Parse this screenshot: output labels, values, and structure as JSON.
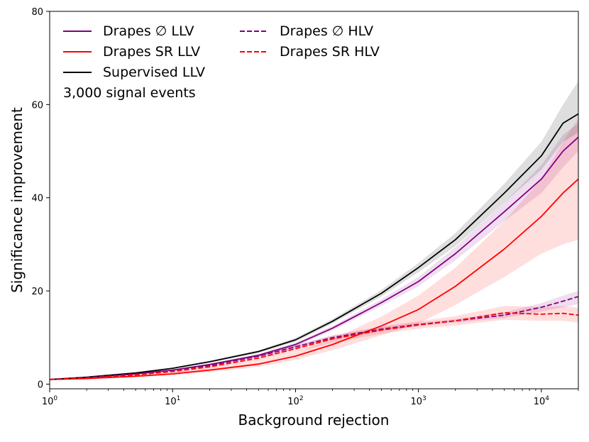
{
  "chart_data": {
    "type": "line",
    "xlabel": "Background rejection",
    "ylabel": "Significance improvement",
    "xscale": "log",
    "xlim": [
      1,
      20000
    ],
    "ylim": [
      -1,
      80
    ],
    "annotation": "3,000 signal events",
    "legend_position": "top-left",
    "x_ticks": [
      {
        "value": 1,
        "base": "10",
        "exp": "0"
      },
      {
        "value": 10,
        "base": "10",
        "exp": "1"
      },
      {
        "value": 100,
        "base": "10",
        "exp": "2"
      },
      {
        "value": 1000,
        "base": "10",
        "exp": "3"
      },
      {
        "value": 10000,
        "base": "10",
        "exp": "4"
      }
    ],
    "y_ticks": [
      {
        "value": 0,
        "label": "0"
      },
      {
        "value": 20,
        "label": "20"
      },
      {
        "value": 40,
        "label": "40"
      },
      {
        "value": 60,
        "label": "60"
      },
      {
        "value": 80,
        "label": "80"
      }
    ],
    "series": [
      {
        "name": "Drapes ∅ LLV",
        "color": "#800080",
        "dash": "solid",
        "x": [
          1,
          2,
          5,
          10,
          20,
          50,
          100,
          200,
          500,
          1000,
          2000,
          5000,
          10000,
          15000,
          20000
        ],
        "y": [
          1.0,
          1.4,
          2.2,
          3.0,
          4.2,
          6.2,
          8.5,
          12.0,
          17.5,
          22.0,
          28.0,
          37.0,
          44.0,
          50.0,
          53.0
        ],
        "band_lo": [
          1.0,
          1.3,
          2.1,
          2.9,
          4.0,
          5.9,
          8.1,
          11.5,
          16.8,
          21.0,
          26.6,
          35.0,
          41.0,
          46.5,
          50.0
        ],
        "band_hi": [
          1.0,
          1.5,
          2.3,
          3.1,
          4.4,
          6.5,
          8.9,
          12.5,
          18.2,
          23.0,
          29.4,
          39.0,
          47.0,
          53.5,
          56.0
        ]
      },
      {
        "name": "Drapes SR LLV",
        "color": "#ff0000",
        "dash": "solid",
        "x": [
          1,
          2,
          5,
          10,
          20,
          50,
          100,
          200,
          500,
          1000,
          2000,
          5000,
          10000,
          15000,
          20000
        ],
        "y": [
          1.0,
          1.2,
          1.7,
          2.2,
          3.0,
          4.3,
          6.0,
          8.5,
          12.5,
          16.0,
          21.0,
          29.0,
          36.0,
          41.0,
          44.0
        ],
        "band_lo": [
          0.9,
          1.1,
          1.5,
          1.9,
          2.6,
          3.7,
          5.2,
          7.3,
          10.5,
          13.0,
          17.0,
          23.0,
          28.0,
          30.0,
          31.0
        ],
        "band_hi": [
          1.1,
          1.3,
          1.9,
          2.5,
          3.4,
          4.9,
          6.8,
          9.7,
          14.5,
          19.0,
          25.0,
          35.0,
          44.0,
          52.0,
          57.0
        ]
      },
      {
        "name": "Supervised LLV",
        "color": "#000000",
        "dash": "solid",
        "x": [
          1,
          2,
          5,
          10,
          20,
          50,
          100,
          200,
          500,
          1000,
          2000,
          5000,
          10000,
          15000,
          20000
        ],
        "y": [
          1.0,
          1.5,
          2.4,
          3.4,
          4.8,
          7.0,
          9.5,
          13.5,
          19.5,
          25.0,
          31.0,
          41.0,
          49.0,
          56.0,
          58.0
        ],
        "band_lo": [
          1.0,
          1.4,
          2.3,
          3.3,
          4.6,
          6.7,
          9.1,
          13.0,
          18.8,
          24.0,
          29.6,
          39.0,
          46.0,
          52.0,
          54.0
        ],
        "band_hi": [
          1.0,
          1.6,
          2.5,
          3.5,
          5.0,
          7.3,
          9.9,
          14.0,
          20.2,
          26.0,
          32.4,
          43.0,
          52.0,
          60.0,
          65.0
        ]
      },
      {
        "name": "Drapes ∅ HLV",
        "color": "#800080",
        "dash": "dashed",
        "x": [
          1,
          2,
          5,
          10,
          20,
          50,
          100,
          200,
          500,
          1000,
          2000,
          5000,
          10000,
          15000,
          20000
        ],
        "y": [
          1.0,
          1.4,
          2.2,
          3.0,
          4.0,
          6.0,
          8.0,
          10.0,
          11.8,
          12.8,
          13.6,
          14.8,
          16.5,
          17.8,
          18.8
        ],
        "band_lo": [
          1.0,
          1.3,
          2.1,
          2.9,
          3.8,
          5.7,
          7.6,
          9.6,
          11.4,
          12.4,
          13.2,
          14.2,
          15.6,
          16.5,
          17.2
        ],
        "band_hi": [
          1.0,
          1.5,
          2.3,
          3.1,
          4.2,
          6.3,
          8.4,
          10.4,
          12.2,
          13.2,
          14.0,
          15.4,
          17.4,
          19.0,
          20.0
        ]
      },
      {
        "name": "Drapes SR HLV",
        "color": "#ff0000",
        "dash": "dashed",
        "x": [
          1,
          2,
          5,
          10,
          20,
          50,
          100,
          200,
          500,
          1000,
          2000,
          5000,
          10000,
          15000,
          20000
        ],
        "y": [
          1.0,
          1.3,
          2.0,
          2.7,
          3.7,
          5.6,
          7.6,
          9.7,
          11.6,
          12.7,
          13.6,
          15.3,
          15.0,
          15.2,
          14.8
        ],
        "band_lo": [
          0.9,
          1.2,
          1.8,
          2.4,
          3.3,
          5.0,
          6.9,
          8.9,
          10.8,
          11.9,
          12.6,
          13.8,
          13.6,
          13.6,
          13.2
        ],
        "band_hi": [
          1.1,
          1.4,
          2.2,
          3.0,
          4.1,
          6.2,
          8.3,
          10.5,
          12.4,
          13.5,
          14.6,
          16.8,
          16.6,
          16.8,
          16.4
        ]
      }
    ]
  }
}
